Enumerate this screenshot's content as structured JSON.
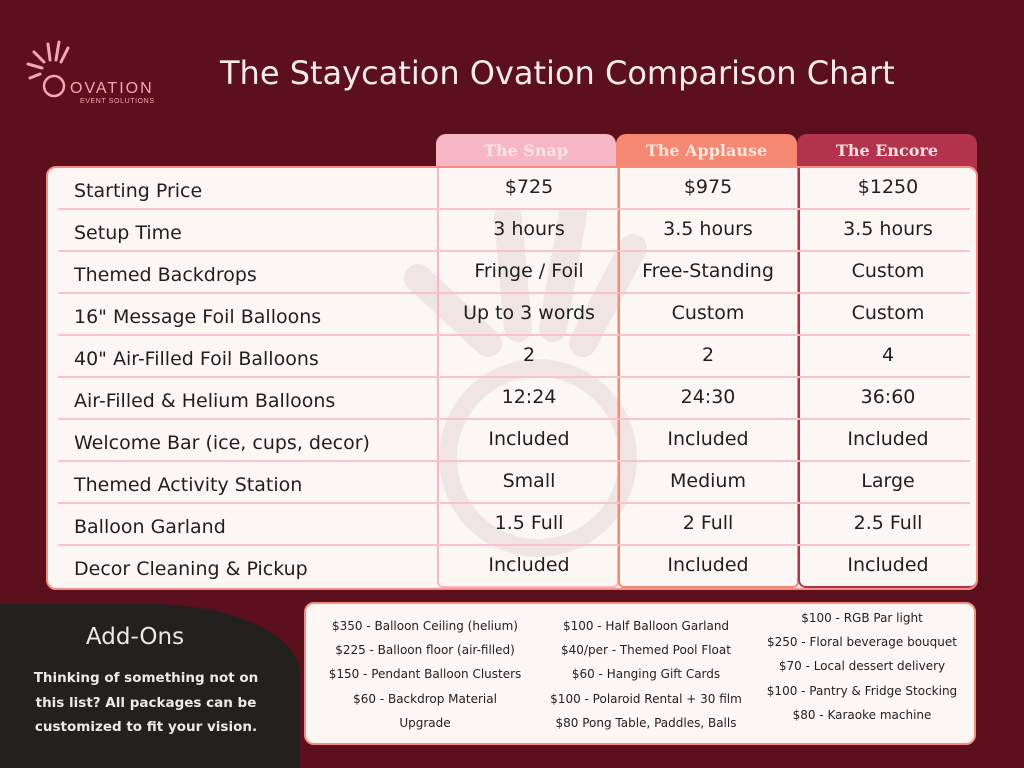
{
  "logo": {
    "word": "OVATION",
    "sub": "EVENT SOLUTIONS"
  },
  "title": "The Staycation Ovation Comparison Chart",
  "packages": [
    {
      "name": "The Snap",
      "color": "#f7b6c6"
    },
    {
      "name": "The Applause",
      "color": "#f58872"
    },
    {
      "name": "The Encore",
      "color": "#b3334d"
    }
  ],
  "rows": [
    {
      "label": "Starting Price",
      "values": [
        "$725",
        "$975",
        "$1250"
      ]
    },
    {
      "label": "Setup Time",
      "values": [
        "3 hours",
        "3.5 hours",
        "3.5 hours"
      ]
    },
    {
      "label": "Themed Backdrops",
      "values": [
        "Fringe / Foil",
        "Free-Standing",
        "Custom"
      ]
    },
    {
      "label": "16\" Message Foil Balloons",
      "values": [
        "Up to 3 words",
        "Custom",
        "Custom"
      ]
    },
    {
      "label": "40\" Air-Filled Foil Balloons",
      "values": [
        "2",
        "2",
        "4"
      ]
    },
    {
      "label": "Air-Filled & Helium Balloons",
      "values": [
        "12:24",
        "24:30",
        "36:60"
      ]
    },
    {
      "label": "Welcome Bar (ice, cups, decor)",
      "values": [
        "Included",
        "Included",
        "Included"
      ]
    },
    {
      "label": "Themed Activity Station",
      "values": [
        "Small",
        "Medium",
        "Large"
      ]
    },
    {
      "label": "Balloon Garland",
      "values": [
        "1.5 Full",
        "2 Full",
        "2.5 Full"
      ]
    },
    {
      "label": "Decor Cleaning & Pickup",
      "values": [
        "Included",
        "Included",
        "Included"
      ]
    }
  ],
  "addons": {
    "title": "Add-Ons",
    "text": "Thinking of something not on this list? All packages can be customized to fit your vision.",
    "col1": [
      "$350 - Balloon Ceiling (helium)",
      "$225 - Balloon floor (air-filled)",
      "$150 - Pendant Balloon Clusters",
      "$60 - Backdrop Material",
      "Upgrade"
    ],
    "col2": [
      "$100 - Half Balloon Garland",
      "$40/per - Themed Pool Float",
      "$60 - Hanging Gift Cards",
      "$100 - Polaroid Rental + 30 film",
      "$80 Pong Table, Paddles, Balls"
    ],
    "col3": [
      "$100 - RGB Par light",
      "$250 - Floral beverage bouquet",
      "$70 - Local dessert delivery",
      "$100 - Pantry & Fridge Stocking",
      "$80 - Karaoke machine"
    ]
  },
  "colors": {
    "background": "#5c0f1c",
    "card": "#fcf7f5",
    "accent": "#f48e82",
    "dark": "#232120"
  }
}
